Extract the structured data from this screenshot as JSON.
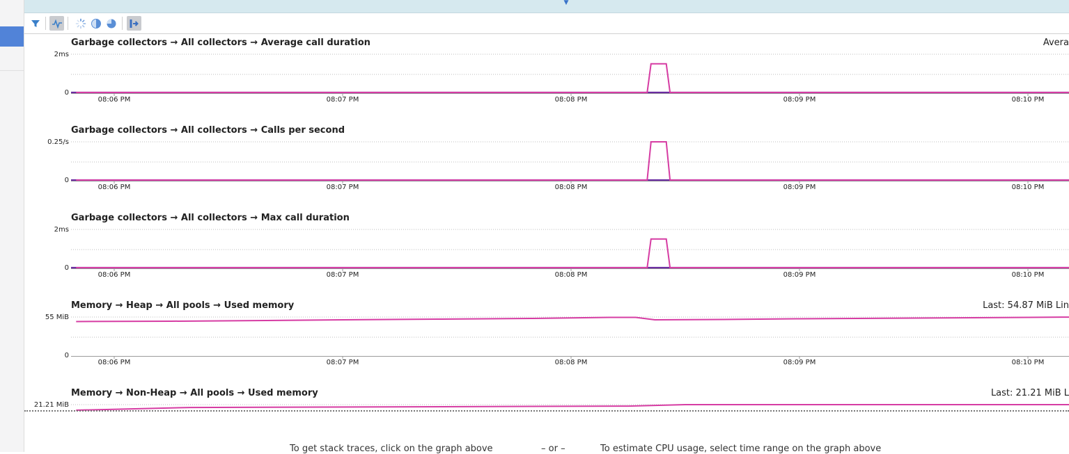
{
  "icons": {
    "filter": "filter-icon",
    "activity": "activity-icon",
    "loading": "spinner-icon",
    "half": "half-circle-icon",
    "pie": "pie-chart-icon",
    "export": "export-icon"
  },
  "colors": {
    "series": "#d63ca3",
    "baseline": "#6a2ca0",
    "accent": "#5183d8",
    "topbar": "#d6e9ef"
  },
  "x_ticks": [
    "08:06 PM",
    "08:07 PM",
    "08:08 PM",
    "08:09 PM",
    "08:10 PM"
  ],
  "charts": [
    {
      "title": "Garbage collectors → All collectors → Average call duration",
      "right_label": "Avera",
      "y_labels": [
        "2ms",
        "0"
      ]
    },
    {
      "title": "Garbage collectors → All collectors → Calls per second",
      "right_label": "",
      "y_labels": [
        "0.25/s",
        "0"
      ]
    },
    {
      "title": "Garbage collectors → All collectors → Max call duration",
      "right_label": "",
      "y_labels": [
        "2ms",
        "0"
      ]
    },
    {
      "title": "Memory → Heap → All pools → Used memory",
      "right_label": "Last: 54.87 MiB   Lin",
      "y_labels": [
        "55 MiB",
        "0"
      ]
    },
    {
      "title": "Memory → Non-Heap → All pools → Used memory",
      "right_label": "Last: 21.21 MiB   L",
      "y_labels": [
        "21.21 MiB"
      ]
    }
  ],
  "chart_data": [
    {
      "type": "line",
      "title": "Garbage collectors → All collectors → Average call duration",
      "ylabel": "ms",
      "ylim": [
        0,
        2.5
      ],
      "series": [
        {
          "values": [
            [
              "08:05:50 PM",
              0
            ],
            [
              "08:08:20 PM",
              0
            ],
            [
              "08:08:21 PM",
              1.5
            ],
            [
              "08:08:25 PM",
              1.5
            ],
            [
              "08:08:26 PM",
              0
            ],
            [
              "08:10:11 PM",
              0
            ]
          ]
        }
      ]
    },
    {
      "type": "line",
      "title": "Garbage collectors → All collectors → Calls per second",
      "ylabel": "/s",
      "ylim": [
        0,
        0.3
      ],
      "series": [
        {
          "values": [
            [
              "08:05:50 PM",
              0
            ],
            [
              "08:08:20 PM",
              0
            ],
            [
              "08:08:21 PM",
              0.25
            ],
            [
              "08:08:25 PM",
              0.25
            ],
            [
              "08:08:26 PM",
              0
            ],
            [
              "08:10:11 PM",
              0
            ]
          ]
        }
      ]
    },
    {
      "type": "line",
      "title": "Garbage collectors → All collectors → Max call duration",
      "ylabel": "ms",
      "ylim": [
        0,
        2.5
      ],
      "series": [
        {
          "values": [
            [
              "08:05:50 PM",
              0
            ],
            [
              "08:08:20 PM",
              0
            ],
            [
              "08:08:21 PM",
              1.5
            ],
            [
              "08:08:25 PM",
              1.5
            ],
            [
              "08:08:26 PM",
              0
            ],
            [
              "08:10:11 PM",
              0
            ]
          ]
        }
      ]
    },
    {
      "type": "line",
      "title": "Memory → Heap → All pools → Used memory",
      "ylabel": "MiB",
      "ylim": [
        0,
        70
      ],
      "series": [
        {
          "values": [
            [
              "08:05:50 PM",
              48.5
            ],
            [
              "08:06:15 PM",
              49
            ],
            [
              "08:06:40 PM",
              50
            ],
            [
              "08:07:00 PM",
              51
            ],
            [
              "08:07:25 PM",
              52
            ],
            [
              "08:07:50 PM",
              53
            ],
            [
              "08:08:10 PM",
              54.5
            ],
            [
              "08:08:17 PM",
              54.5
            ],
            [
              "08:08:22 PM",
              51
            ],
            [
              "08:08:40 PM",
              51.5
            ],
            [
              "08:09:00 PM",
              52.5
            ],
            [
              "08:09:30 PM",
              53.5
            ],
            [
              "08:10:00 PM",
              54.5
            ],
            [
              "08:10:11 PM",
              54.87
            ]
          ]
        }
      ]
    },
    {
      "type": "line",
      "title": "Memory → Non-Heap → All pools → Used memory",
      "ylabel": "MiB",
      "series": [
        {
          "values": [
            [
              "08:05:50 PM",
              20.6
            ],
            [
              "08:06:20 PM",
              20.9
            ],
            [
              "08:08:15 PM",
              21.05
            ],
            [
              "08:08:30 PM",
              21.21
            ],
            [
              "08:10:11 PM",
              21.21
            ]
          ]
        }
      ]
    }
  ],
  "bottom": {
    "left_hint": "To get stack traces, click on the graph above",
    "or": "– or –",
    "right_hint": "To estimate CPU usage, select time range on the graph above"
  }
}
